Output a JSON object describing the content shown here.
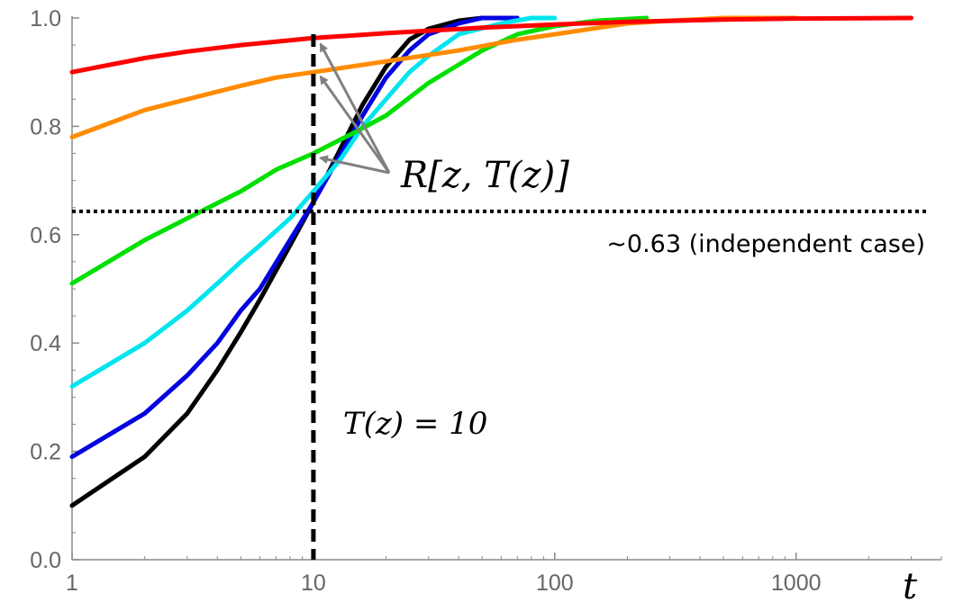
{
  "chart_data": {
    "type": "line",
    "x_scale": "log",
    "xlim": [
      1,
      4000
    ],
    "ylim": [
      0,
      1
    ],
    "xlabel": "t",
    "ylabel": "",
    "x_ticks": [
      1,
      10,
      100,
      1000
    ],
    "x_tick_labels": [
      "1",
      "10",
      "100",
      "1000"
    ],
    "y_ticks": [
      0,
      0.2,
      0.4,
      0.6,
      0.8,
      1
    ],
    "y_tick_labels": [
      "0.0",
      "0.2",
      "0.4",
      "0.6",
      "0.8",
      "1.0"
    ],
    "grid": false,
    "series": [
      {
        "color": "#000000",
        "points": [
          [
            1,
            0.1
          ],
          [
            2,
            0.19
          ],
          [
            3,
            0.27
          ],
          [
            4,
            0.35
          ],
          [
            5,
            0.42
          ],
          [
            6,
            0.48
          ],
          [
            8,
            0.58
          ],
          [
            10,
            0.66
          ],
          [
            13,
            0.76
          ],
          [
            16,
            0.84
          ],
          [
            20,
            0.91
          ],
          [
            25,
            0.96
          ],
          [
            30,
            0.98
          ],
          [
            40,
            0.995
          ],
          [
            50,
            1.0
          ],
          [
            60,
            1.0
          ]
        ]
      },
      {
        "color": "#0000e0",
        "points": [
          [
            1,
            0.19
          ],
          [
            2,
            0.27
          ],
          [
            3,
            0.34
          ],
          [
            4,
            0.4
          ],
          [
            5,
            0.46
          ],
          [
            6,
            0.5
          ],
          [
            8,
            0.59
          ],
          [
            10,
            0.66
          ],
          [
            13,
            0.75
          ],
          [
            16,
            0.82
          ],
          [
            20,
            0.89
          ],
          [
            25,
            0.94
          ],
          [
            30,
            0.97
          ],
          [
            40,
            0.99
          ],
          [
            50,
            1.0
          ],
          [
            70,
            1.0
          ]
        ]
      },
      {
        "color": "#00e5ee",
        "points": [
          [
            1,
            0.32
          ],
          [
            2,
            0.4
          ],
          [
            3,
            0.46
          ],
          [
            4,
            0.51
          ],
          [
            5,
            0.55
          ],
          [
            6,
            0.58
          ],
          [
            8,
            0.63
          ],
          [
            10,
            0.68
          ],
          [
            13,
            0.74
          ],
          [
            16,
            0.8
          ],
          [
            20,
            0.85
          ],
          [
            25,
            0.9
          ],
          [
            30,
            0.93
          ],
          [
            40,
            0.97
          ],
          [
            60,
            0.99
          ],
          [
            80,
            1.0
          ],
          [
            100,
            1.0
          ]
        ]
      },
      {
        "color": "#00e000",
        "points": [
          [
            1,
            0.51
          ],
          [
            2,
            0.59
          ],
          [
            3,
            0.63
          ],
          [
            5,
            0.68
          ],
          [
            7,
            0.72
          ],
          [
            10,
            0.75
          ],
          [
            15,
            0.79
          ],
          [
            20,
            0.82
          ],
          [
            30,
            0.88
          ],
          [
            50,
            0.94
          ],
          [
            70,
            0.97
          ],
          [
            100,
            0.985
          ],
          [
            150,
            0.995
          ],
          [
            240,
            1.0
          ]
        ]
      },
      {
        "color": "#ff8c00",
        "points": [
          [
            1,
            0.78
          ],
          [
            2,
            0.83
          ],
          [
            3,
            0.85
          ],
          [
            5,
            0.875
          ],
          [
            7,
            0.89
          ],
          [
            10,
            0.9
          ],
          [
            20,
            0.92
          ],
          [
            40,
            0.94
          ],
          [
            70,
            0.96
          ],
          [
            100,
            0.97
          ],
          [
            200,
            0.99
          ],
          [
            300,
            0.995
          ],
          [
            500,
            1.0
          ],
          [
            1000,
            1.0
          ]
        ]
      },
      {
        "color": "#ff0000",
        "points": [
          [
            1,
            0.9
          ],
          [
            2,
            0.926
          ],
          [
            3,
            0.938
          ],
          [
            5,
            0.95
          ],
          [
            10,
            0.963
          ],
          [
            20,
            0.972
          ],
          [
            50,
            0.982
          ],
          [
            100,
            0.988
          ],
          [
            200,
            0.993
          ],
          [
            500,
            0.997
          ],
          [
            1000,
            0.999
          ],
          [
            3000,
            1.0
          ]
        ]
      }
    ],
    "reference_lines": {
      "horizontal": {
        "y": 0.643,
        "label": "~0.63 (independent case)",
        "style": "dotted"
      },
      "vertical": {
        "x": 10,
        "label": "T(z) = 10",
        "style": "dashed"
      }
    },
    "annotation": {
      "text": "R[z, T(z)]",
      "color": "#808080",
      "arrow_targets": [
        [
          10,
          0.96
        ],
        [
          10,
          0.9
        ],
        [
          10,
          0.75
        ]
      ]
    }
  }
}
